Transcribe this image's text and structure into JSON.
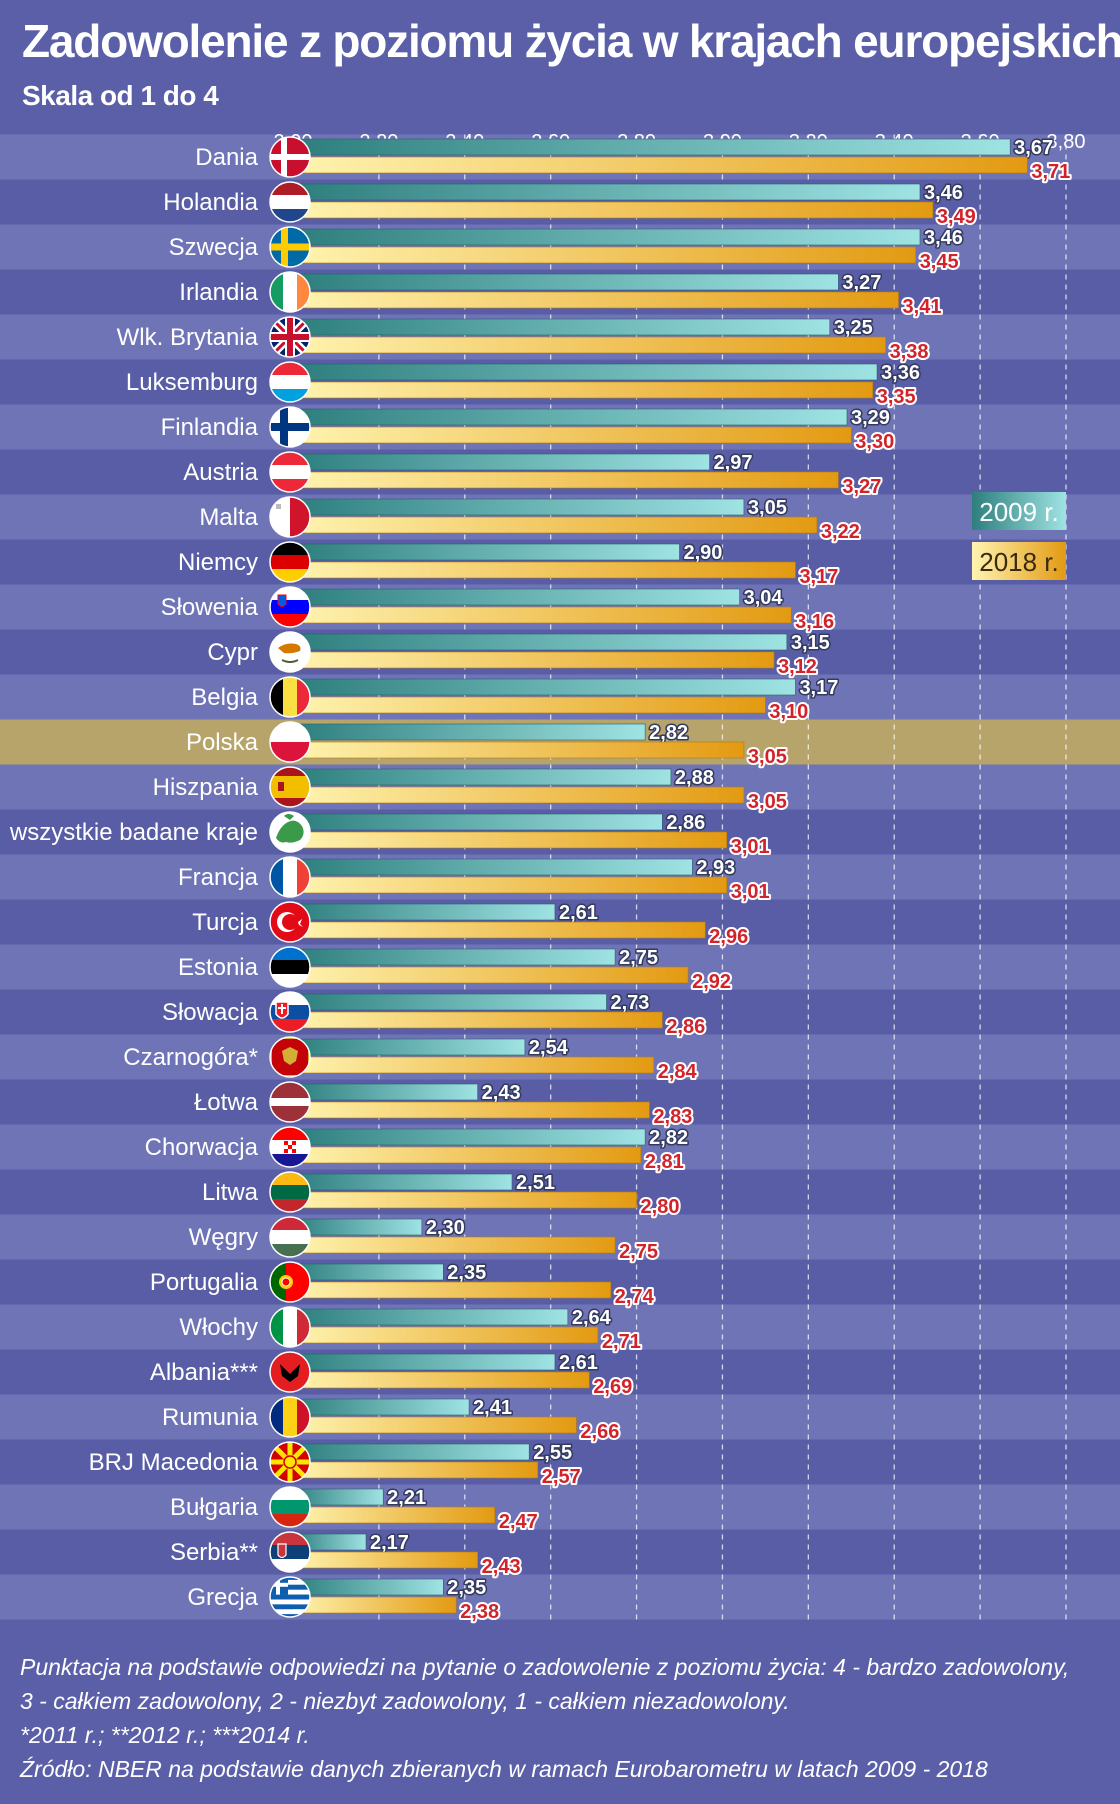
{
  "header": {
    "title": "Zadowolenie z poziomu życia w krajach europejskich",
    "subtitle": "Skala od 1 do 4"
  },
  "colors": {
    "background": "#5a5fa8",
    "stripe_light": "#6f74b6",
    "stripe_dark": "#585da6",
    "highlight": "#b6a46a",
    "series_2009_start": "#2e7e7e",
    "series_2009_end": "#9fe3e3",
    "series_2018_start": "#fff4b0",
    "series_2018_end": "#e39a12",
    "value_2018": "#d2232a"
  },
  "chart_data": {
    "type": "bar",
    "orientation": "horizontal",
    "title": "Zadowolenie z poziomu życia w krajach europejskich",
    "subtitle": "Skala od 1 do 4",
    "xlim": [
      2.0,
      3.8
    ],
    "xticks": [
      "2,00",
      "2,20",
      "2,40",
      "2,60",
      "2,80",
      "3,00",
      "3,20",
      "3,40",
      "3,60",
      "3,80"
    ],
    "grid": "vertical dashed",
    "legend_position": "right",
    "highlight_category": "Polska",
    "categories": [
      "Dania",
      "Holandia",
      "Szwecja",
      "Irlandia",
      "Wlk. Brytania",
      "Luksemburg",
      "Finlandia",
      "Austria",
      "Malta",
      "Niemcy",
      "Słowenia",
      "Cypr",
      "Belgia",
      "Polska",
      "Hiszpania",
      "wszystkie badane kraje",
      "Francja",
      "Turcja",
      "Estonia",
      "Słowacja",
      "Czarnogóra*",
      "Łotwa",
      "Chorwacja",
      "Litwa",
      "Węgry",
      "Portugalia",
      "Włochy",
      "Albania***",
      "Rumunia",
      "BRJ Macedonia",
      "Bułgaria",
      "Serbia**",
      "Grecja"
    ],
    "series": [
      {
        "name": "2009 r.",
        "values": [
          3.67,
          3.46,
          3.46,
          3.27,
          3.25,
          3.36,
          3.29,
          2.97,
          3.05,
          2.9,
          3.04,
          3.15,
          3.17,
          2.82,
          2.88,
          2.86,
          2.93,
          2.61,
          2.75,
          2.73,
          2.54,
          2.43,
          2.82,
          2.51,
          2.3,
          2.35,
          2.64,
          2.61,
          2.41,
          2.55,
          2.21,
          2.17,
          2.35
        ],
        "labels": [
          "3,67",
          "3,46",
          "3,46",
          "3,27",
          "3,25",
          "3,36",
          "3,29",
          "2,97",
          "3,05",
          "2,90",
          "3,04",
          "3,15",
          "3,17",
          "2,82",
          "2,88",
          "2,86",
          "2,93",
          "2,61",
          "2,75",
          "2,73",
          "2,54",
          "2,43",
          "2,82",
          "2,51",
          "2,30",
          "2,35",
          "2,64",
          "2,61",
          "2,41",
          "2,55",
          "2,21",
          "2,17",
          "2,35"
        ]
      },
      {
        "name": "2018 r.",
        "values": [
          3.71,
          3.49,
          3.45,
          3.41,
          3.38,
          3.35,
          3.3,
          3.27,
          3.22,
          3.17,
          3.16,
          3.12,
          3.1,
          3.05,
          3.05,
          3.01,
          3.01,
          2.96,
          2.92,
          2.86,
          2.84,
          2.83,
          2.81,
          2.8,
          2.75,
          2.74,
          2.71,
          2.69,
          2.66,
          2.57,
          2.47,
          2.43,
          2.38
        ],
        "labels": [
          "3,71",
          "3,49",
          "3,45",
          "3,41",
          "3,38",
          "3,35",
          "3,30",
          "3,27",
          "3,22",
          "3,17",
          "3,16",
          "3,12",
          "3,10",
          "3,05",
          "3,05",
          "3,01",
          "3,01",
          "2,96",
          "2,92",
          "2,86",
          "2,84",
          "2,83",
          "2,81",
          "2,80",
          "2,75",
          "2,74",
          "2,71",
          "2,69",
          "2,66",
          "2,57",
          "2,47",
          "2,43",
          "2,38"
        ]
      }
    ],
    "flag_icons": [
      "flag-denmark-icon",
      "flag-netherlands-icon",
      "flag-sweden-icon",
      "flag-ireland-icon",
      "flag-uk-icon",
      "flag-luxembourg-icon",
      "flag-finland-icon",
      "flag-austria-icon",
      "flag-malta-icon",
      "flag-germany-icon",
      "flag-slovenia-icon",
      "flag-cyprus-icon",
      "flag-belgium-icon",
      "flag-poland-icon",
      "flag-spain-icon",
      "europe-map-icon",
      "flag-france-icon",
      "flag-turkey-icon",
      "flag-estonia-icon",
      "flag-slovakia-icon",
      "flag-montenegro-icon",
      "flag-latvia-icon",
      "flag-croatia-icon",
      "flag-lithuania-icon",
      "flag-hungary-icon",
      "flag-portugal-icon",
      "flag-italy-icon",
      "flag-albania-icon",
      "flag-romania-icon",
      "flag-macedonia-icon",
      "flag-bulgaria-icon",
      "flag-serbia-icon",
      "flag-greece-icon"
    ]
  },
  "footer": {
    "note_line1": "Punktacja na podstawie odpowiedzi na pytanie o zadowolenie z poziomu życia: 4 - bardzo zadowolony,",
    "note_line2": "3 - całkiem zadowolony, 2 - niezbyt zadowolony, 1 - całkiem niezadowolony.",
    "years_note": "*2011 r.; **2012 r.; ***2014 r.",
    "source": "Źródło: NBER na podstawie danych zbieranych w ramach Eurobarometru w latach 2009 - 2018"
  }
}
